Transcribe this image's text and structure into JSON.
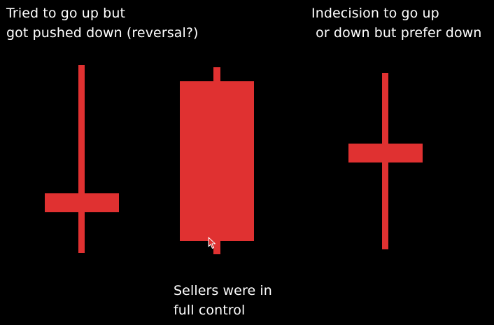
{
  "annotations": {
    "left": "Tried to go up but\ngot pushed down (reversal?)",
    "right": "Indecision to go up\n or down but prefer down",
    "bottom": "Sellers were in\nfull control"
  },
  "colors": {
    "background": "#000000",
    "candle": "#e03131",
    "text": "#ffffff"
  },
  "candles": [
    {
      "name": "inverted-hammer-candle",
      "wick": "long-upper",
      "body": "small-lower"
    },
    {
      "name": "bearish-marubozu-candle",
      "wick": "short-both",
      "body": "large"
    },
    {
      "name": "spinning-top-candle",
      "wick": "long-both",
      "body": "small-middle"
    }
  ],
  "cursor_icon": "arrow-cursor-icon"
}
